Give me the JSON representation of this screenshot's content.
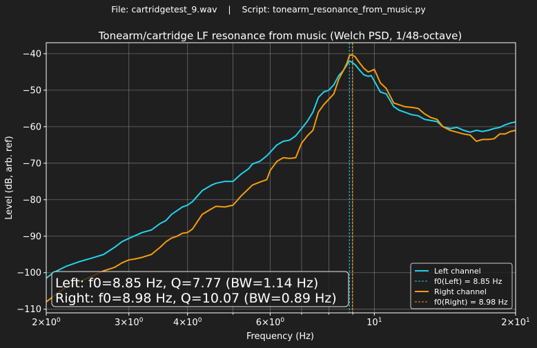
{
  "suptitle": "File: cartridgetest_9.wav    |    Script: tonearm_resonance_from_music.py",
  "colors": {
    "background": "#1f1f1f",
    "axes_face": "#1f1f1f",
    "grid": "#8a8a8a",
    "text": "#ffffff",
    "left": "#22d3ee",
    "right": "#f59e0b"
  },
  "chart_data": {
    "type": "line",
    "title": "Tonearm/cartridge LF resonance from music (Welch PSD, 1/48-octave)",
    "xlabel": "Frequency (Hz)",
    "ylabel": "Level (dB, arb. ref)",
    "xscale": "log",
    "xlim": [
      2,
      20
    ],
    "ylim": [
      -111,
      -37
    ],
    "grid": true,
    "xticks_major": [
      {
        "value": 2,
        "base": "2×10",
        "exp": "0"
      },
      {
        "value": 3,
        "base": "3×10",
        "exp": "0"
      },
      {
        "value": 4,
        "base": "4×10",
        "exp": "0"
      },
      {
        "value": 6,
        "base": "6×10",
        "exp": "0"
      },
      {
        "value": 10,
        "base": "10",
        "exp": "1"
      },
      {
        "value": 20,
        "base": "2×10",
        "exp": "1"
      }
    ],
    "xgrid": [
      2,
      3,
      4,
      5,
      6,
      7,
      8,
      9,
      10,
      20
    ],
    "yticks": [
      -110,
      -100,
      -90,
      -80,
      -70,
      -60,
      -50,
      -40
    ],
    "series": [
      {
        "name": "Left channel",
        "color": "#22d3ee",
        "x": [
          2.0,
          2.07,
          2.2,
          2.35,
          2.5,
          2.65,
          2.8,
          2.9,
          3.0,
          3.1,
          3.2,
          3.35,
          3.5,
          3.6,
          3.7,
          3.8,
          3.9,
          4.0,
          4.1,
          4.3,
          4.5,
          4.6,
          4.8,
          5.0,
          5.2,
          5.4,
          5.5,
          5.7,
          5.9,
          6.0,
          6.2,
          6.4,
          6.6,
          6.8,
          7.0,
          7.2,
          7.4,
          7.6,
          7.8,
          8.0,
          8.2,
          8.4,
          8.6,
          8.75,
          8.85,
          8.95,
          9.1,
          9.3,
          9.5,
          9.7,
          9.85,
          10.0,
          10.1,
          10.3,
          10.6,
          11.0,
          11.3,
          11.6,
          12.0,
          12.4,
          12.8,
          13.2,
          13.6,
          14.0,
          14.5,
          15.0,
          15.5,
          16.0,
          16.5,
          17.0,
          17.5,
          18.0,
          18.5,
          19.0,
          19.5,
          20.0
        ],
        "y": [
          -101.5,
          -100.0,
          -98.3,
          -97.0,
          -96.0,
          -95.0,
          -93.0,
          -91.5,
          -90.6,
          -89.8,
          -89.0,
          -88.3,
          -86.5,
          -85.7,
          -84.0,
          -83.0,
          -82.0,
          -81.5,
          -80.5,
          -77.5,
          -76.0,
          -75.5,
          -75.0,
          -75.0,
          -73.0,
          -71.5,
          -70.2,
          -69.5,
          -68.0,
          -67.0,
          -65.0,
          -64.0,
          -63.7,
          -62.5,
          -60.5,
          -58.5,
          -56.0,
          -52.0,
          -50.5,
          -50.0,
          -48.5,
          -46.0,
          -44.5,
          -43.0,
          -42.0,
          -42.3,
          -43.0,
          -44.5,
          -45.8,
          -46.2,
          -46.0,
          -47.5,
          -48.5,
          -50.5,
          -51.0,
          -54.5,
          -55.5,
          -56.0,
          -56.7,
          -57.0,
          -58.0,
          -58.3,
          -58.6,
          -60.0,
          -60.5,
          -60.2,
          -61.0,
          -61.5,
          -61.0,
          -61.3,
          -61.0,
          -60.5,
          -60.2,
          -59.5,
          -59.0,
          -58.7
        ]
      },
      {
        "name": "Right channel",
        "color": "#f59e0b",
        "x": [
          2.0,
          2.07,
          2.2,
          2.35,
          2.5,
          2.65,
          2.8,
          2.9,
          3.0,
          3.1,
          3.2,
          3.35,
          3.5,
          3.6,
          3.7,
          3.8,
          3.9,
          4.0,
          4.1,
          4.3,
          4.5,
          4.6,
          4.8,
          5.0,
          5.2,
          5.4,
          5.5,
          5.7,
          5.9,
          6.0,
          6.2,
          6.4,
          6.6,
          6.8,
          7.0,
          7.2,
          7.4,
          7.6,
          7.8,
          8.0,
          8.2,
          8.4,
          8.6,
          8.75,
          8.85,
          8.95,
          9.1,
          9.3,
          9.5,
          9.7,
          9.85,
          10.0,
          10.1,
          10.3,
          10.6,
          11.0,
          11.3,
          11.6,
          12.0,
          12.4,
          12.8,
          13.2,
          13.6,
          14.0,
          14.5,
          15.0,
          15.5,
          16.0,
          16.5,
          17.0,
          17.5,
          18.0,
          18.5,
          19.0,
          19.5,
          20.0
        ],
        "y": [
          -108.0,
          -106.5,
          -104.0,
          -102.5,
          -101.0,
          -99.5,
          -98.5,
          -97.3,
          -96.5,
          -96.2,
          -95.8,
          -95.0,
          -93.0,
          -91.5,
          -90.5,
          -90.0,
          -89.2,
          -89.0,
          -88.0,
          -84.0,
          -82.5,
          -81.8,
          -82.0,
          -81.5,
          -79.0,
          -77.0,
          -76.0,
          -75.2,
          -74.5,
          -72.0,
          -69.5,
          -68.5,
          -68.7,
          -68.5,
          -64.5,
          -62.5,
          -61.0,
          -56.0,
          -54.0,
          -52.5,
          -51.0,
          -47.0,
          -44.5,
          -42.5,
          -40.5,
          -40.3,
          -40.8,
          -42.5,
          -44.0,
          -45.0,
          -44.7,
          -44.3,
          -45.5,
          -48.0,
          -49.5,
          -53.5,
          -54.0,
          -54.5,
          -54.7,
          -55.0,
          -56.5,
          -57.5,
          -58.0,
          -60.0,
          -61.0,
          -61.5,
          -62.0,
          -62.3,
          -64.0,
          -63.5,
          -63.5,
          -63.3,
          -62.0,
          -62.0,
          -61.3,
          -61.0
        ]
      }
    ],
    "vlines": [
      {
        "name": "f0(Left) = 8.85 Hz",
        "x": 8.85,
        "color": "#22d3ee",
        "style": "dashed"
      },
      {
        "name": "f0(Right) = 8.98 Hz",
        "x": 8.98,
        "color": "#f59e0b",
        "style": "dashed"
      }
    ],
    "legend_position": "lower-right",
    "legend": [
      {
        "label": "Left channel",
        "color": "#22d3ee",
        "style": "solid"
      },
      {
        "label": "f0(Left) = 8.85 Hz",
        "color": "#22d3ee",
        "style": "dashed"
      },
      {
        "label": "Right channel",
        "color": "#f59e0b",
        "style": "solid"
      },
      {
        "label": "f0(Right) = 8.98 Hz",
        "color": "#f59e0b",
        "style": "dashed"
      }
    ],
    "annotation": [
      "Left: f0=8.85 Hz, Q=7.77 (BW=1.14 Hz)",
      "Right: f0=8.98 Hz, Q=10.07 (BW=0.89 Hz)"
    ]
  }
}
